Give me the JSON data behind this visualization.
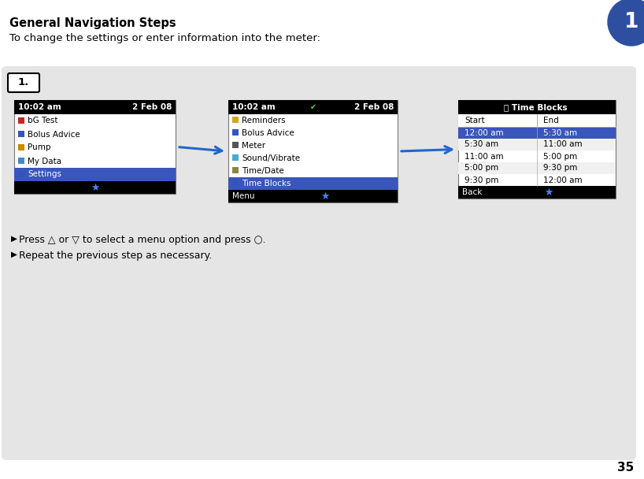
{
  "bg_color": "#e5e5e5",
  "white": "#ffffff",
  "black": "#000000",
  "blue_highlight": "#3a55bb",
  "title": "General Navigation Steps",
  "subtitle": "To change the settings or enter information into the meter:",
  "step_label": "1.",
  "bullet1": "Press △ or ▽ to select a menu option and press ○.",
  "bullet2": "Repeat the previous step as necessary.",
  "page_number": "35",
  "screen1": {
    "header_time": "10:02 am",
    "header_date": "2 Feb 08",
    "items": [
      "bG Test",
      "Bolus Advice",
      "Pump",
      "My Data",
      "Settings"
    ],
    "selected": 4,
    "icon_colors": [
      "#cc2222",
      "#3355bb",
      "#cc8800",
      "#4488cc",
      "#3355bb"
    ]
  },
  "screen2": {
    "header_time": "10:02 am",
    "header_date": "2 Feb 08",
    "items": [
      "Reminders",
      "Bolus Advice",
      "Meter",
      "Sound/Vibrate",
      "Time/Date",
      "Time Blocks"
    ],
    "selected": 5,
    "footer_left": "Menu",
    "icon_colors": [
      "#ccaa22",
      "#3355bb",
      "#555555",
      "#44aacc",
      "#888844",
      "#3355bb"
    ]
  },
  "screen3": {
    "header": "Time Blocks",
    "col1_header": "Start",
    "col2_header": "End",
    "rows": [
      [
        "12:00 am",
        "5:30 am"
      ],
      [
        "5:30 am",
        "11:00 am"
      ],
      [
        "11:00 am",
        "5:00 pm"
      ],
      [
        "5:00 pm",
        "9:30 pm"
      ],
      [
        "9:30 pm",
        "12:00 am"
      ]
    ],
    "selected_row": 0,
    "footer_left": "Back"
  },
  "corner_circle_color": "#2e4fa0",
  "corner_number": "1",
  "arrow_color": "#2266cc"
}
